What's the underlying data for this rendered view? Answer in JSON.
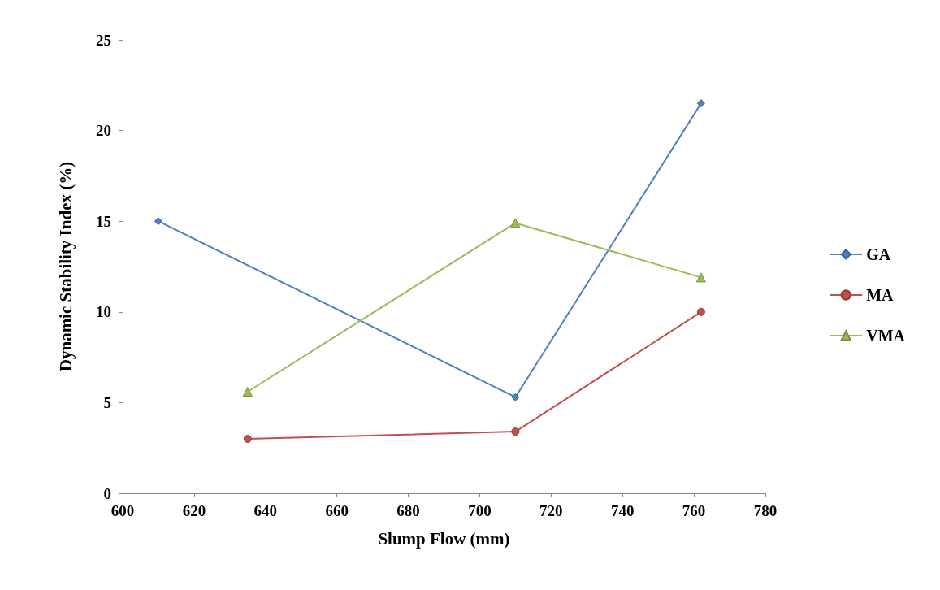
{
  "chart_data": {
    "type": "line",
    "xlabel": "Slump Flow (mm)",
    "ylabel": "Dynamic Stability Index (%)",
    "xlim": [
      600,
      780
    ],
    "xticks": [
      600,
      620,
      640,
      660,
      680,
      700,
      720,
      740,
      760,
      780
    ],
    "ylim": [
      0,
      25
    ],
    "yticks": [
      0,
      5,
      10,
      15,
      20,
      25
    ],
    "grid": false,
    "legend": "right",
    "series": [
      {
        "name": "GA",
        "color": "#4f81bd",
        "marker": "diamond",
        "x": [
          610,
          710,
          762
        ],
        "values": [
          15.0,
          5.3,
          21.5
        ]
      },
      {
        "name": "MA",
        "color": "#c0504d",
        "marker": "circle",
        "x": [
          635,
          710,
          762
        ],
        "values": [
          3.0,
          3.4,
          10.0
        ]
      },
      {
        "name": "VMA",
        "color": "#9bbb59",
        "marker": "triangle",
        "x": [
          635,
          710,
          762
        ],
        "values": [
          5.6,
          14.9,
          11.9
        ]
      }
    ]
  }
}
